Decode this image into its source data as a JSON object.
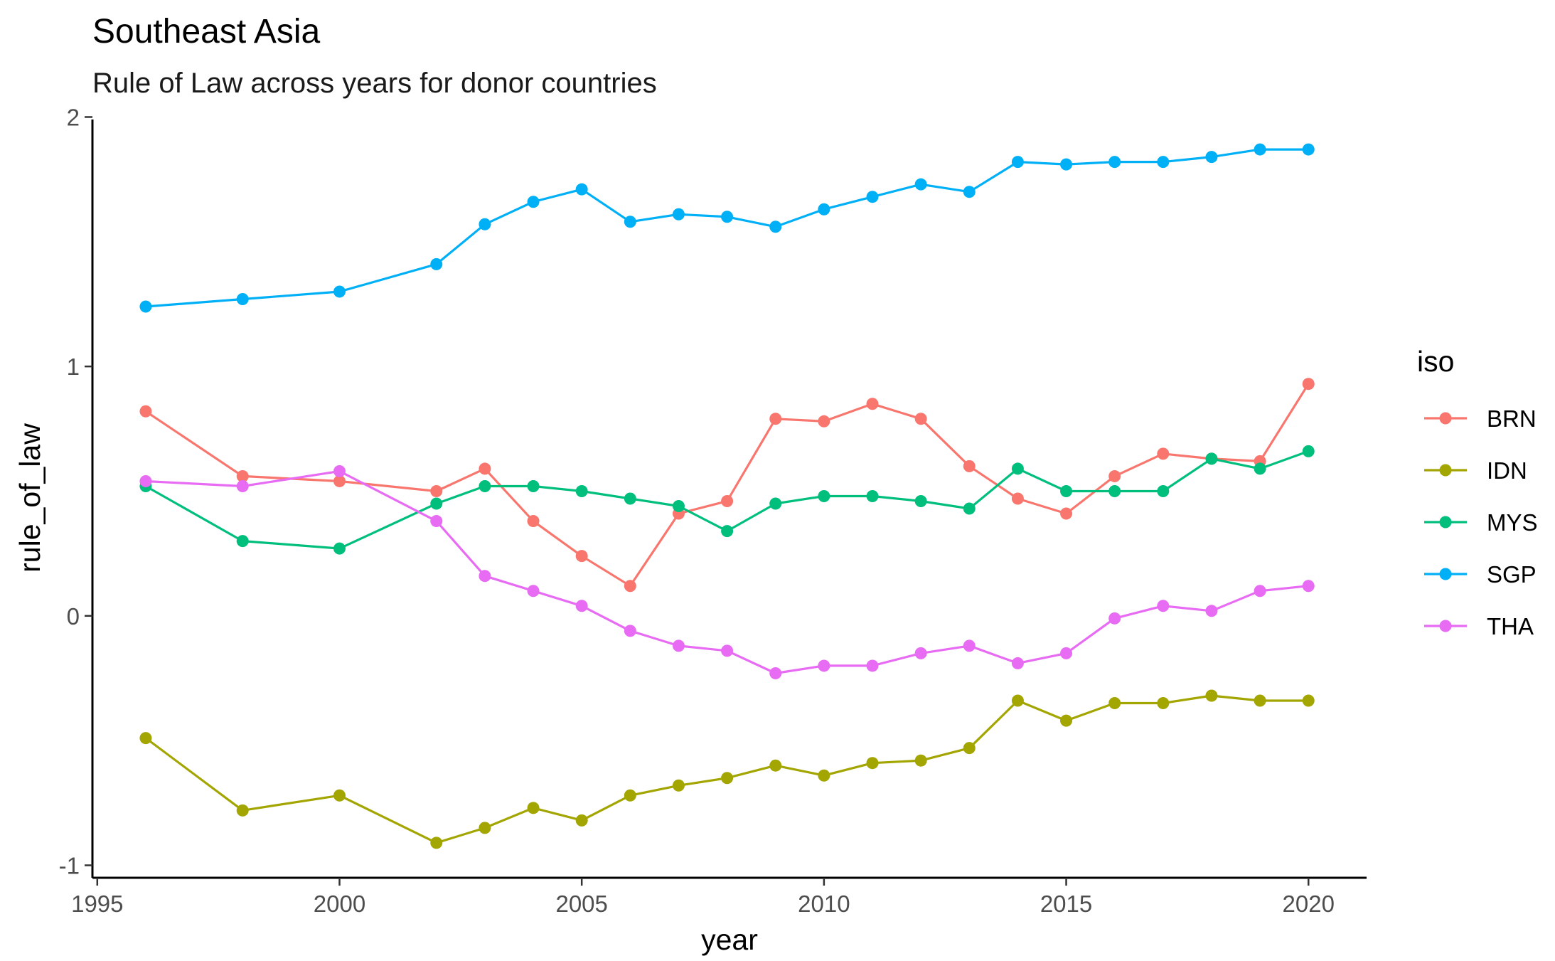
{
  "chart_data": {
    "type": "line",
    "title": "Southeast Asia",
    "subtitle": "Rule of Law across years for donor countries",
    "xlabel": "year",
    "ylabel": "rule_of_law",
    "xlim": [
      1994.9,
      2021.2
    ],
    "ylim": [
      -1.05,
      1.99
    ],
    "xticks": [
      1995,
      2000,
      2005,
      2010,
      2015,
      2020
    ],
    "yticks": [
      -1,
      0,
      1,
      2
    ],
    "ytick_labels": [
      "-1",
      "0",
      "1",
      "2"
    ],
    "grid": false,
    "legend": {
      "title": "iso",
      "position": "right"
    },
    "x": [
      1996,
      1998,
      2000,
      2002,
      2003,
      2004,
      2005,
      2006,
      2007,
      2008,
      2009,
      2010,
      2011,
      2012,
      2013,
      2014,
      2015,
      2016,
      2017,
      2018,
      2019,
      2020
    ],
    "series": [
      {
        "name": "BRN",
        "color": "#F8766D",
        "values": [
          0.82,
          0.56,
          0.54,
          0.5,
          0.59,
          0.38,
          0.24,
          0.12,
          0.41,
          0.46,
          0.79,
          0.78,
          0.85,
          0.79,
          0.6,
          0.47,
          0.41,
          0.56,
          0.65,
          0.63,
          0.62,
          0.93
        ]
      },
      {
        "name": "IDN",
        "color": "#A3A500",
        "values": [
          -0.49,
          -0.78,
          -0.72,
          -0.91,
          -0.85,
          -0.77,
          -0.82,
          -0.72,
          -0.68,
          -0.65,
          -0.6,
          -0.64,
          -0.59,
          -0.58,
          -0.53,
          -0.34,
          -0.42,
          -0.35,
          -0.35,
          -0.32,
          -0.34,
          -0.34
        ]
      },
      {
        "name": "MYS",
        "color": "#00BF7D",
        "values": [
          0.52,
          0.3,
          0.27,
          0.45,
          0.52,
          0.52,
          0.5,
          0.47,
          0.44,
          0.34,
          0.45,
          0.48,
          0.48,
          0.46,
          0.43,
          0.59,
          0.5,
          0.5,
          0.5,
          0.63,
          0.59,
          0.66
        ]
      },
      {
        "name": "SGP",
        "color": "#00B0F6",
        "values": [
          1.24,
          1.27,
          1.3,
          1.41,
          1.57,
          1.66,
          1.71,
          1.58,
          1.61,
          1.6,
          1.56,
          1.63,
          1.68,
          1.73,
          1.7,
          1.82,
          1.81,
          1.82,
          1.82,
          1.84,
          1.87,
          1.87
        ]
      },
      {
        "name": "THA",
        "color": "#E76BF3",
        "values": [
          0.54,
          0.52,
          0.58,
          0.38,
          0.16,
          0.1,
          0.04,
          -0.06,
          -0.12,
          -0.14,
          -0.23,
          -0.2,
          -0.2,
          -0.15,
          -0.12,
          -0.19,
          -0.15,
          -0.01,
          0.04,
          0.02,
          0.1,
          0.12
        ]
      }
    ]
  }
}
